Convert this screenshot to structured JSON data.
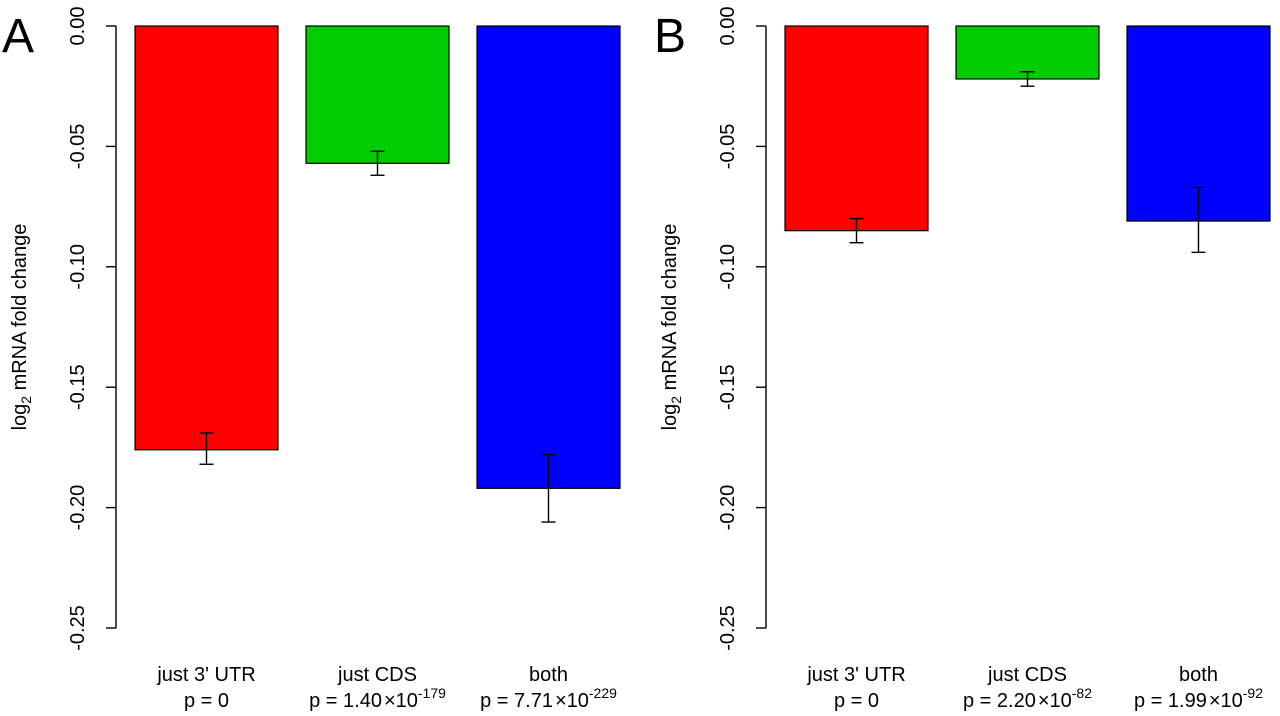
{
  "chart_data": [
    {
      "panel_label": "A",
      "type": "bar",
      "ylabel_main": "log",
      "ylabel_sub": "2",
      "ylabel_rest": " mRNA fold change",
      "ylim": [
        -0.25,
        0.0
      ],
      "yticks": [
        0.0,
        -0.05,
        -0.1,
        -0.15,
        -0.2,
        -0.25
      ],
      "ytick_labels": [
        "0.00",
        "-0.05",
        "-0.10",
        "-0.15",
        "-0.20",
        "-0.25"
      ],
      "categories": [
        "just 3' UTR",
        "just CDS",
        "both"
      ],
      "values": [
        -0.176,
        -0.057,
        -0.192
      ],
      "err_low": [
        -0.182,
        -0.062,
        -0.206
      ],
      "err_high": [
        -0.169,
        -0.052,
        -0.178
      ],
      "colors": [
        "#ff0000",
        "#00cc00",
        "#0000ff"
      ],
      "pvalues": [
        {
          "text": "p = 0",
          "base": "",
          "exp": ""
        },
        {
          "text": "p = 1.40",
          "base": "10",
          "exp": "-179"
        },
        {
          "text": "p = 7.71",
          "base": "10",
          "exp": "-229"
        }
      ]
    },
    {
      "panel_label": "B",
      "type": "bar",
      "ylabel_main": "log",
      "ylabel_sub": "2",
      "ylabel_rest": " mRNA fold change",
      "ylim": [
        -0.25,
        0.0
      ],
      "yticks": [
        0.0,
        -0.05,
        -0.1,
        -0.15,
        -0.2,
        -0.25
      ],
      "ytick_labels": [
        "0.00",
        "-0.05",
        "-0.10",
        "-0.15",
        "-0.20",
        "-0.25"
      ],
      "categories": [
        "just 3' UTR",
        "just CDS",
        "both"
      ],
      "values": [
        -0.085,
        -0.022,
        -0.081
      ],
      "err_low": [
        -0.09,
        -0.025,
        -0.094
      ],
      "err_high": [
        -0.08,
        -0.019,
        -0.067
      ],
      "colors": [
        "#ff0000",
        "#00cc00",
        "#0000ff"
      ],
      "pvalues": [
        {
          "text": "p = 0",
          "base": "",
          "exp": ""
        },
        {
          "text": "p = 2.20",
          "base": "10",
          "exp": "-82"
        },
        {
          "text": "p = 1.99",
          "base": "10",
          "exp": "-92"
        }
      ]
    }
  ]
}
